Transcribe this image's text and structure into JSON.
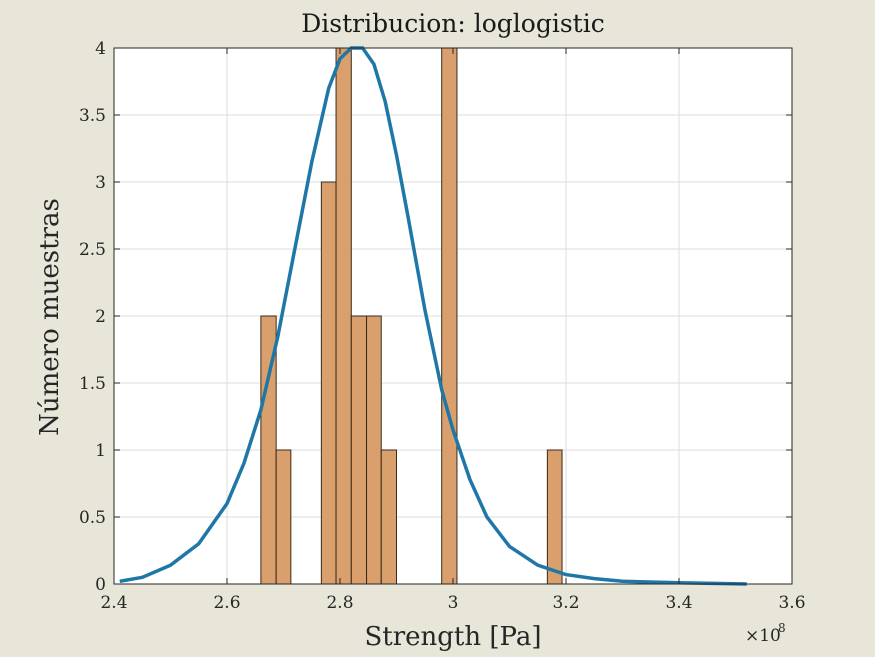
{
  "chart_data": {
    "type": "bar",
    "title": "Distribucion: loglogistic",
    "xlabel": "Strength [Pa]",
    "ylabel": "Número muestras",
    "x_exponent_label": "×10",
    "x_exponent_power": "8",
    "x_scale_factor": 100000000,
    "xlim": [
      2.4,
      3.6
    ],
    "ylim": [
      0,
      4
    ],
    "xticks": [
      2.4,
      2.6,
      2.8,
      3,
      3.2,
      3.4,
      3.6
    ],
    "xtick_labels": [
      "2.4",
      "2.6",
      "2.8",
      "3",
      "3.2",
      "3.4",
      "3.6"
    ],
    "yticks": [
      0,
      0.5,
      1,
      1.5,
      2,
      2.5,
      3,
      3.5,
      4
    ],
    "ytick_labels": [
      "0",
      "0.5",
      "1",
      "1.5",
      "2",
      "2.5",
      "3",
      "3.5",
      "4"
    ],
    "grid": true,
    "bins": [
      {
        "x0": 2.66,
        "x1": 2.687,
        "count": 2
      },
      {
        "x0": 2.687,
        "x1": 2.713,
        "count": 1
      },
      {
        "x0": 2.767,
        "x1": 2.793,
        "count": 3
      },
      {
        "x0": 2.793,
        "x1": 2.82,
        "count": 4
      },
      {
        "x0": 2.82,
        "x1": 2.847,
        "count": 2
      },
      {
        "x0": 2.847,
        "x1": 2.873,
        "count": 2
      },
      {
        "x0": 2.873,
        "x1": 2.9,
        "count": 1
      },
      {
        "x0": 2.98,
        "x1": 3.007,
        "count": 4
      },
      {
        "x0": 3.167,
        "x1": 3.193,
        "count": 1
      }
    ],
    "fit_curve": {
      "x": [
        2.41,
        2.45,
        2.5,
        2.55,
        2.6,
        2.63,
        2.66,
        2.69,
        2.72,
        2.75,
        2.78,
        2.8,
        2.82,
        2.84,
        2.86,
        2.88,
        2.9,
        2.92,
        2.95,
        2.98,
        3.0,
        3.03,
        3.06,
        3.1,
        3.15,
        3.2,
        3.25,
        3.3,
        3.4,
        3.52
      ],
      "y": [
        0.02,
        0.05,
        0.14,
        0.3,
        0.6,
        0.9,
        1.3,
        1.85,
        2.5,
        3.15,
        3.7,
        3.92,
        4.0,
        4.0,
        3.88,
        3.6,
        3.2,
        2.75,
        2.05,
        1.45,
        1.15,
        0.78,
        0.5,
        0.28,
        0.14,
        0.07,
        0.04,
        0.02,
        0.01,
        0.0
      ]
    },
    "colors": {
      "bar_fill": "#d9a06d",
      "bar_stroke": "#3a2a1a",
      "curve": "#1f77a8",
      "plot_bg": "#ffffff",
      "page_bg": "#e8e6d8",
      "grid": "#dcdcdc"
    }
  }
}
